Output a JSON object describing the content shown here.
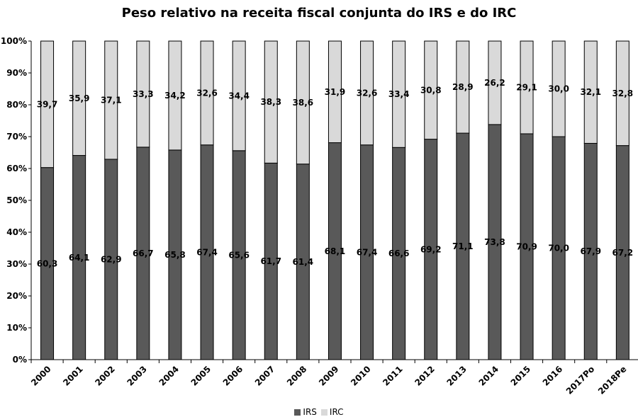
{
  "chart_data": {
    "type": "bar",
    "stacked": true,
    "title": "Peso relativo na receita fiscal conjunta do IRS e do IRC",
    "categories": [
      "2000",
      "2001",
      "2002",
      "2003",
      "2004",
      "2005",
      "2006",
      "2007",
      "2008",
      "2009",
      "2010",
      "2011",
      "2012",
      "2013",
      "2014",
      "2015",
      "2016",
      "2017Po",
      "2018Pe"
    ],
    "series": [
      {
        "name": "IRS",
        "color": "#595959",
        "values": [
          60.3,
          64.1,
          62.9,
          66.7,
          65.8,
          67.4,
          65.6,
          61.7,
          61.4,
          68.1,
          67.4,
          66.6,
          69.2,
          71.1,
          73.8,
          70.9,
          70.0,
          67.9,
          67.2
        ],
        "labels": [
          "60,3",
          "64,1",
          "62,9",
          "66,7",
          "65,8",
          "67,4",
          "65,6",
          "61,7",
          "61,4",
          "68,1",
          "67,4",
          "66,6",
          "69,2",
          "71,1",
          "73,8",
          "70,9",
          "70,0",
          "67,9",
          "67,2"
        ]
      },
      {
        "name": "IRC",
        "color": "#d9d9d9",
        "values": [
          39.7,
          35.9,
          37.1,
          33.3,
          34.2,
          32.6,
          34.4,
          38.3,
          38.6,
          31.9,
          32.6,
          33.4,
          30.8,
          28.9,
          26.2,
          29.1,
          30.0,
          32.1,
          32.8
        ],
        "labels": [
          "39,7",
          "35,9",
          "37,1",
          "33,3",
          "34,2",
          "32,6",
          "34,4",
          "38,3",
          "38,6",
          "31,9",
          "32,6",
          "33,4",
          "30,8",
          "28,9",
          "26,2",
          "29,1",
          "30,0",
          "32,1",
          "32,8"
        ]
      }
    ],
    "y_ticks": [
      "0%",
      "10%",
      "20%",
      "30%",
      "40%",
      "50%",
      "60%",
      "70%",
      "80%",
      "90%",
      "100%"
    ],
    "ylim": [
      0,
      100
    ],
    "grid": false,
    "legend_position": "bottom"
  }
}
